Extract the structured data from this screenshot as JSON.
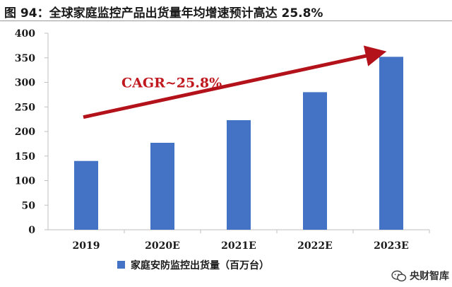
{
  "caption": "图 94：全球家庭监控产品出货量年均增速预计高达 25.8%",
  "watermark": {
    "text": "央财智库",
    "icon": "wechat-icon"
  },
  "colors": {
    "bar": "#4472C4",
    "arrow": "#B4121B",
    "annotation": "#C0181F",
    "axis": "#bfbfbf",
    "text": "#1a1a1a"
  },
  "chart_data": {
    "type": "bar",
    "categories": [
      "2019",
      "2020E",
      "2021E",
      "2022E",
      "2023E"
    ],
    "series": [
      {
        "name": "家庭安防监控出货量（百万台）",
        "values": [
          140,
          177,
          223,
          280,
          352
        ]
      }
    ],
    "ylim": [
      0,
      400
    ],
    "yticks": [
      0,
      50,
      100,
      150,
      200,
      250,
      300,
      350,
      400
    ],
    "grid": false,
    "legend": "bottom",
    "annotations": [
      {
        "text": "CAGR~25.8%",
        "type": "arrow"
      }
    ]
  }
}
